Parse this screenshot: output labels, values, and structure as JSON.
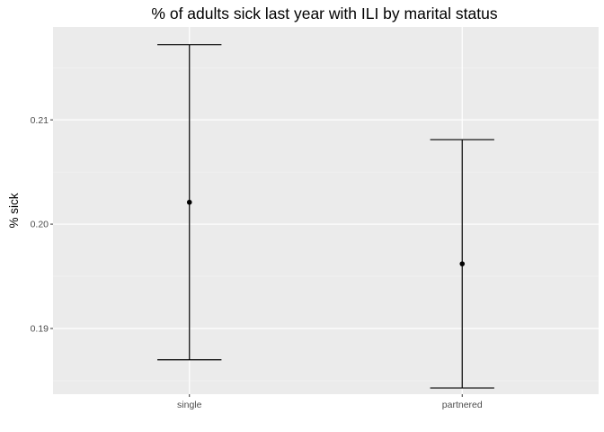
{
  "chart_data": {
    "type": "errorbar",
    "title": "% of adults sick last year with ILI by marital status",
    "xlabel": "",
    "ylabel": "% sick",
    "categories": [
      "single",
      "partnered"
    ],
    "series": [
      {
        "points": [
          {
            "category": "single",
            "y": 0.2021,
            "ymin": 0.187,
            "ymax": 0.2172
          },
          {
            "category": "partnered",
            "y": 0.1962,
            "ymin": 0.1843,
            "ymax": 0.2081
          }
        ]
      }
    ],
    "yticks": [
      0.19,
      0.2,
      0.21
    ],
    "ytick_labels": [
      "0.19",
      "0.20",
      "0.21"
    ],
    "ylim": [
      0.1837,
      0.2189
    ],
    "grid": true,
    "legend": "none",
    "colors": {
      "panel_background": "#ebebeb",
      "grid_major": "#ffffff",
      "grid_minor": "#f5f5f5",
      "marks": "#000000",
      "tick_text": "#4d4d4d",
      "tick_mark": "#333333"
    }
  }
}
